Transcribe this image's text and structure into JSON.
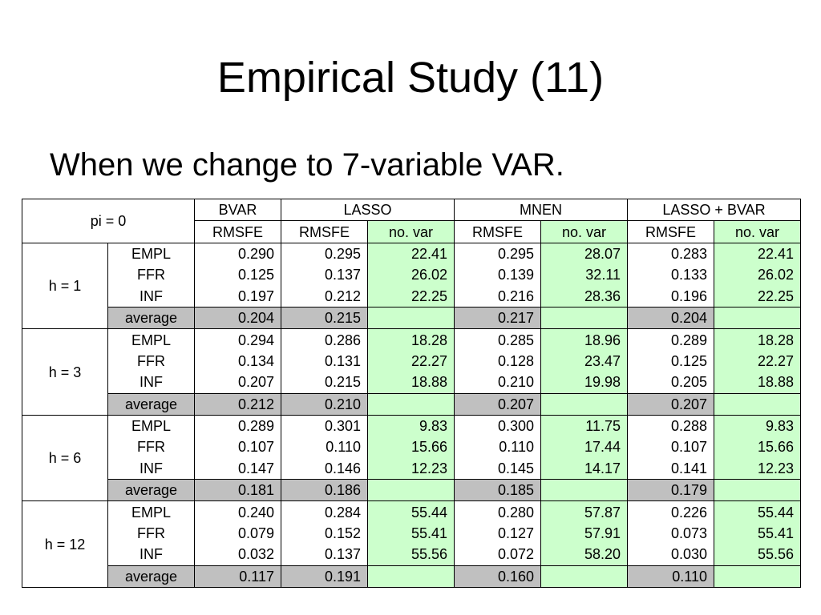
{
  "title": "Empirical Study (11)",
  "bullet": "When we change to 7-variable VAR.",
  "table": {
    "corner": "pi = 0",
    "methods": [
      "BVAR",
      "LASSO",
      "MNEN",
      "LASSO + BVAR"
    ],
    "subheaders": [
      "RMSFE",
      "RMSFE",
      "no. var",
      "RMSFE",
      "no. var",
      "RMSFE",
      "no. var"
    ],
    "horizons": [
      {
        "label": "h = 1",
        "rows": [
          {
            "var": "EMPL",
            "bvar": "0.290",
            "lasso_rmsfe": "0.295",
            "lasso_nvar": "22.41",
            "mnen_rmsfe": "0.295",
            "mnen_nvar": "28.07",
            "lb_rmsfe": "0.283",
            "lb_nvar": "22.41"
          },
          {
            "var": "FFR",
            "bvar": "0.125",
            "lasso_rmsfe": "0.137",
            "lasso_nvar": "26.02",
            "mnen_rmsfe": "0.139",
            "mnen_nvar": "32.11",
            "lb_rmsfe": "0.133",
            "lb_nvar": "26.02"
          },
          {
            "var": "INF",
            "bvar": "0.197",
            "lasso_rmsfe": "0.212",
            "lasso_nvar": "22.25",
            "mnen_rmsfe": "0.216",
            "mnen_nvar": "28.36",
            "lb_rmsfe": "0.196",
            "lb_nvar": "22.25"
          }
        ],
        "average": {
          "label": "average",
          "bvar": "0.204",
          "lasso_rmsfe": "0.215",
          "mnen_rmsfe": "0.217",
          "lb_rmsfe": "0.204"
        }
      },
      {
        "label": "h = 3",
        "rows": [
          {
            "var": "EMPL",
            "bvar": "0.294",
            "lasso_rmsfe": "0.286",
            "lasso_nvar": "18.28",
            "mnen_rmsfe": "0.285",
            "mnen_nvar": "18.96",
            "lb_rmsfe": "0.289",
            "lb_nvar": "18.28"
          },
          {
            "var": "FFR",
            "bvar": "0.134",
            "lasso_rmsfe": "0.131",
            "lasso_nvar": "22.27",
            "mnen_rmsfe": "0.128",
            "mnen_nvar": "23.47",
            "lb_rmsfe": "0.125",
            "lb_nvar": "22.27"
          },
          {
            "var": "INF",
            "bvar": "0.207",
            "lasso_rmsfe": "0.215",
            "lasso_nvar": "18.88",
            "mnen_rmsfe": "0.210",
            "mnen_nvar": "19.98",
            "lb_rmsfe": "0.205",
            "lb_nvar": "18.88"
          }
        ],
        "average": {
          "label": "average",
          "bvar": "0.212",
          "lasso_rmsfe": "0.210",
          "mnen_rmsfe": "0.207",
          "lb_rmsfe": "0.207"
        }
      },
      {
        "label": "h = 6",
        "rows": [
          {
            "var": "EMPL",
            "bvar": "0.289",
            "lasso_rmsfe": "0.301",
            "lasso_nvar": "9.83",
            "mnen_rmsfe": "0.300",
            "mnen_nvar": "11.75",
            "lb_rmsfe": "0.288",
            "lb_nvar": "9.83"
          },
          {
            "var": "FFR",
            "bvar": "0.107",
            "lasso_rmsfe": "0.110",
            "lasso_nvar": "15.66",
            "mnen_rmsfe": "0.110",
            "mnen_nvar": "17.44",
            "lb_rmsfe": "0.107",
            "lb_nvar": "15.66"
          },
          {
            "var": "INF",
            "bvar": "0.147",
            "lasso_rmsfe": "0.146",
            "lasso_nvar": "12.23",
            "mnen_rmsfe": "0.145",
            "mnen_nvar": "14.17",
            "lb_rmsfe": "0.141",
            "lb_nvar": "12.23"
          }
        ],
        "average": {
          "label": "average",
          "bvar": "0.181",
          "lasso_rmsfe": "0.186",
          "mnen_rmsfe": "0.185",
          "lb_rmsfe": "0.179"
        }
      },
      {
        "label": "h = 12",
        "rows": [
          {
            "var": "EMPL",
            "bvar": "0.240",
            "lasso_rmsfe": "0.284",
            "lasso_nvar": "55.44",
            "mnen_rmsfe": "0.280",
            "mnen_nvar": "57.87",
            "lb_rmsfe": "0.226",
            "lb_nvar": "55.44"
          },
          {
            "var": "FFR",
            "bvar": "0.079",
            "lasso_rmsfe": "0.152",
            "lasso_nvar": "55.41",
            "mnen_rmsfe": "0.127",
            "mnen_nvar": "57.91",
            "lb_rmsfe": "0.073",
            "lb_nvar": "55.41"
          },
          {
            "var": "INF",
            "bvar": "0.032",
            "lasso_rmsfe": "0.137",
            "lasso_nvar": "55.56",
            "mnen_rmsfe": "0.072",
            "mnen_nvar": "58.20",
            "lb_rmsfe": "0.030",
            "lb_nvar": "55.56"
          }
        ],
        "average": {
          "label": "average",
          "bvar": "0.117",
          "lasso_rmsfe": "0.191",
          "mnen_rmsfe": "0.160",
          "lb_rmsfe": "0.110"
        }
      }
    ]
  }
}
